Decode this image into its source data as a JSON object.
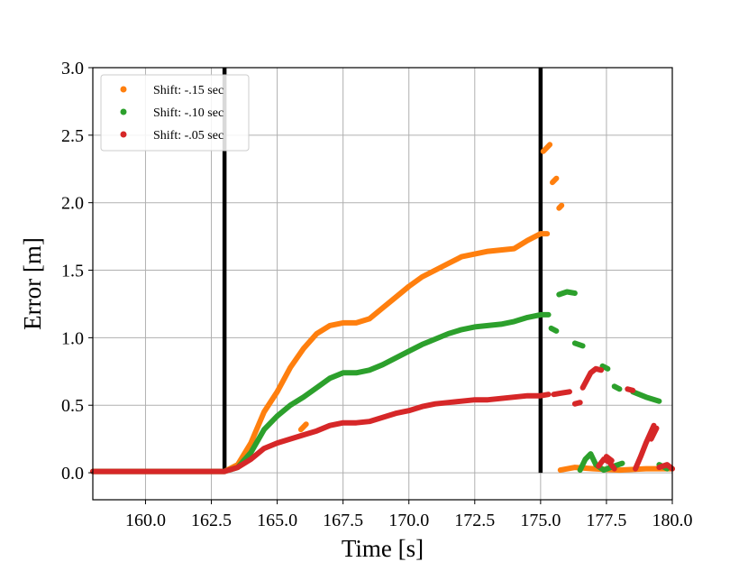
{
  "chart_data": {
    "type": "scatter",
    "title": "",
    "xlabel": "Time [s]",
    "ylabel": "Error [m]",
    "xlim": [
      158.0,
      180.0
    ],
    "ylim": [
      -0.2,
      3.0
    ],
    "xticks": [
      "160.0",
      "162.5",
      "165.0",
      "167.5",
      "170.0",
      "172.5",
      "175.0",
      "177.5",
      "180.0"
    ],
    "xtick_values": [
      160.0,
      162.5,
      165.0,
      167.5,
      170.0,
      172.5,
      175.0,
      177.5,
      180.0
    ],
    "yticks": [
      "0.0",
      "0.5",
      "1.0",
      "1.5",
      "2.0",
      "2.5",
      "3.0"
    ],
    "ytick_values": [
      0.0,
      0.5,
      1.0,
      1.5,
      2.0,
      2.5,
      3.0
    ],
    "grid": true,
    "legend_position": "top-left",
    "vertical_lines": [
      163.0,
      175.0
    ],
    "colors": {
      "orange": "#ff7f0e",
      "green": "#2ca02c",
      "red": "#d62728",
      "grid": "#b0b0b0",
      "vline": "#000000"
    },
    "series": [
      {
        "name": "Shift: -.15 sec",
        "color": "#ff7f0e",
        "segments": [
          [
            [
              158.0,
              0.01
            ],
            [
              160.0,
              0.01
            ],
            [
              162.0,
              0.01
            ],
            [
              163.0,
              0.01
            ],
            [
              163.5,
              0.06
            ],
            [
              164.0,
              0.22
            ],
            [
              164.5,
              0.45
            ],
            [
              165.0,
              0.6
            ],
            [
              165.5,
              0.78
            ],
            [
              166.0,
              0.92
            ],
            [
              166.5,
              1.03
            ],
            [
              167.0,
              1.09
            ],
            [
              167.5,
              1.11
            ],
            [
              168.0,
              1.11
            ],
            [
              168.5,
              1.14
            ],
            [
              169.0,
              1.22
            ],
            [
              169.5,
              1.3
            ],
            [
              170.0,
              1.38
            ],
            [
              170.5,
              1.45
            ],
            [
              171.0,
              1.5
            ],
            [
              171.5,
              1.55
            ],
            [
              172.0,
              1.6
            ],
            [
              172.5,
              1.62
            ],
            [
              173.0,
              1.64
            ],
            [
              173.5,
              1.65
            ],
            [
              174.0,
              1.66
            ],
            [
              174.5,
              1.72
            ],
            [
              175.0,
              1.77
            ],
            [
              175.25,
              1.77
            ]
          ],
          [
            [
              165.9,
              0.32
            ],
            [
              166.1,
              0.36
            ]
          ],
          [
            [
              175.1,
              2.38
            ],
            [
              175.35,
              2.43
            ]
          ],
          [
            [
              175.45,
              2.15
            ],
            [
              175.6,
              2.18
            ]
          ],
          [
            [
              175.7,
              1.96
            ],
            [
              175.8,
              1.98
            ]
          ],
          [
            [
              175.75,
              0.02
            ],
            [
              176.3,
              0.04
            ],
            [
              177.0,
              0.03
            ],
            [
              178.0,
              0.02
            ],
            [
              179.0,
              0.03
            ],
            [
              180.0,
              0.03
            ]
          ]
        ]
      },
      {
        "name": "Shift: -.10 sec",
        "color": "#2ca02c",
        "segments": [
          [
            [
              158.0,
              0.01
            ],
            [
              160.0,
              0.01
            ],
            [
              162.0,
              0.01
            ],
            [
              163.0,
              0.01
            ],
            [
              163.5,
              0.04
            ],
            [
              164.0,
              0.15
            ],
            [
              164.5,
              0.32
            ],
            [
              165.0,
              0.42
            ],
            [
              165.5,
              0.5
            ],
            [
              166.0,
              0.56
            ],
            [
              166.5,
              0.63
            ],
            [
              167.0,
              0.7
            ],
            [
              167.5,
              0.74
            ],
            [
              168.0,
              0.74
            ],
            [
              168.5,
              0.76
            ],
            [
              169.0,
              0.8
            ],
            [
              169.5,
              0.85
            ],
            [
              170.0,
              0.9
            ],
            [
              170.5,
              0.95
            ],
            [
              171.0,
              0.99
            ],
            [
              171.5,
              1.03
            ],
            [
              172.0,
              1.06
            ],
            [
              172.5,
              1.08
            ],
            [
              173.0,
              1.09
            ],
            [
              173.5,
              1.1
            ],
            [
              174.0,
              1.12
            ],
            [
              174.5,
              1.15
            ],
            [
              175.0,
              1.17
            ],
            [
              175.3,
              1.17
            ]
          ],
          [
            [
              175.7,
              1.32
            ],
            [
              176.0,
              1.34
            ],
            [
              176.3,
              1.33
            ]
          ],
          [
            [
              175.4,
              1.07
            ],
            [
              175.6,
              1.05
            ]
          ],
          [
            [
              176.3,
              0.96
            ],
            [
              176.6,
              0.94
            ]
          ],
          [
            [
              177.35,
              0.79
            ],
            [
              177.55,
              0.77
            ]
          ],
          [
            [
              177.8,
              0.64
            ],
            [
              178.0,
              0.62
            ]
          ],
          [
            [
              178.5,
              0.6
            ],
            [
              179.0,
              0.56
            ],
            [
              179.5,
              0.53
            ]
          ],
          [
            [
              176.5,
              0.02
            ],
            [
              176.7,
              0.1
            ],
            [
              176.9,
              0.14
            ],
            [
              177.1,
              0.06
            ],
            [
              177.4,
              0.02
            ],
            [
              177.8,
              0.05
            ],
            [
              178.1,
              0.07
            ]
          ],
          [
            [
              179.5,
              0.06
            ],
            [
              179.8,
              0.03
            ]
          ]
        ]
      },
      {
        "name": "Shift: -.05 sec",
        "color": "#d62728",
        "segments": [
          [
            [
              158.0,
              0.01
            ],
            [
              160.0,
              0.01
            ],
            [
              162.0,
              0.01
            ],
            [
              163.0,
              0.01
            ],
            [
              163.5,
              0.04
            ],
            [
              164.0,
              0.1
            ],
            [
              164.5,
              0.18
            ],
            [
              165.0,
              0.22
            ],
            [
              165.5,
              0.25
            ],
            [
              166.0,
              0.28
            ],
            [
              166.5,
              0.31
            ],
            [
              167.0,
              0.35
            ],
            [
              167.5,
              0.37
            ],
            [
              168.0,
              0.37
            ],
            [
              168.5,
              0.38
            ],
            [
              169.0,
              0.41
            ],
            [
              169.5,
              0.44
            ],
            [
              170.0,
              0.46
            ],
            [
              170.5,
              0.49
            ],
            [
              171.0,
              0.51
            ],
            [
              171.5,
              0.52
            ],
            [
              172.0,
              0.53
            ],
            [
              172.5,
              0.54
            ],
            [
              173.0,
              0.54
            ],
            [
              173.5,
              0.55
            ],
            [
              174.0,
              0.56
            ],
            [
              174.5,
              0.57
            ],
            [
              175.0,
              0.57
            ],
            [
              175.3,
              0.58
            ]
          ],
          [
            [
              175.5,
              0.58
            ],
            [
              175.8,
              0.59
            ],
            [
              176.1,
              0.6
            ]
          ],
          [
            [
              176.6,
              0.63
            ],
            [
              176.9,
              0.74
            ],
            [
              177.1,
              0.77
            ],
            [
              177.3,
              0.76
            ]
          ],
          [
            [
              176.3,
              0.51
            ],
            [
              176.5,
              0.52
            ]
          ],
          [
            [
              178.3,
              0.62
            ],
            [
              178.5,
              0.61
            ]
          ],
          [
            [
              177.2,
              0.05
            ],
            [
              177.4,
              0.1
            ],
            [
              177.6,
              0.08
            ],
            [
              177.8,
              0.03
            ]
          ],
          [
            [
              177.5,
              0.12
            ],
            [
              177.7,
              0.09
            ]
          ],
          [
            [
              178.6,
              0.03
            ],
            [
              178.8,
              0.12
            ],
            [
              179.0,
              0.22
            ],
            [
              179.3,
              0.35
            ]
          ],
          [
            [
              179.2,
              0.25
            ],
            [
              179.4,
              0.33
            ]
          ],
          [
            [
              179.5,
              0.04
            ],
            [
              179.8,
              0.06
            ],
            [
              180.0,
              0.03
            ]
          ]
        ]
      }
    ]
  }
}
